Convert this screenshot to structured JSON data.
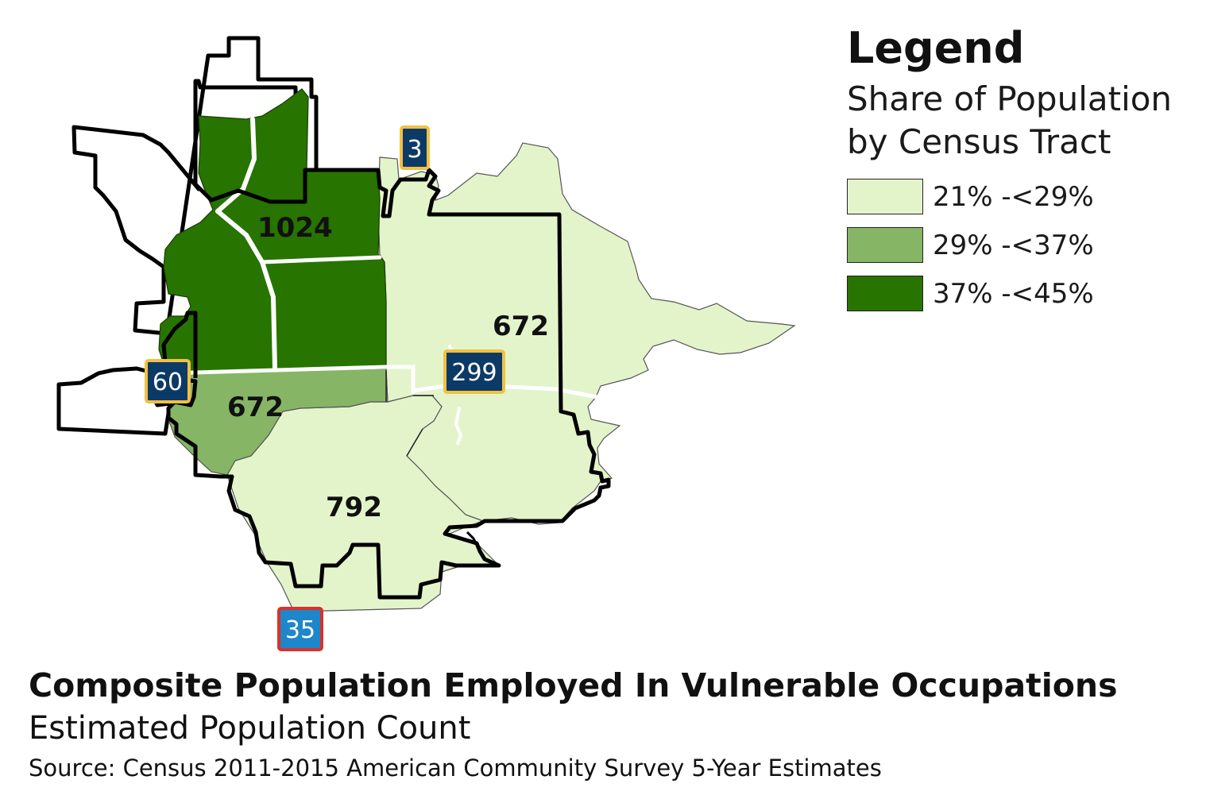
{
  "legend": {
    "title": "Legend",
    "subtitle_line1": "Share of Population",
    "subtitle_line2": "by Census Tract",
    "items": [
      {
        "label": "21% -<29%",
        "color": "#e3f4cb"
      },
      {
        "label": "29% -<37%",
        "color": "#86b566"
      },
      {
        "label": "37% -<45%",
        "color": "#277400"
      }
    ]
  },
  "tracts": [
    {
      "id": "north",
      "label": "1024",
      "class": "37% -<45%"
    },
    {
      "id": "west-center",
      "label": "672",
      "class": "29% -<37%"
    },
    {
      "id": "east",
      "label": "672",
      "class": "21% -<29%"
    },
    {
      "id": "south",
      "label": "792",
      "class": "21% -<29%"
    }
  ],
  "highways": [
    {
      "id": "hwy-3",
      "label": "3",
      "style": "state"
    },
    {
      "id": "hwy-60",
      "label": "60",
      "style": "state"
    },
    {
      "id": "hwy-299",
      "label": "299",
      "style": "state"
    },
    {
      "id": "hwy-35",
      "label": "35",
      "style": "interstate"
    }
  ],
  "colors": {
    "state_shield_fill": "#0c3a66",
    "state_shield_border": "#f2c043",
    "interstate_fill": "#1e86c9",
    "interstate_border": "#d8322a",
    "boundary": "#000000",
    "road": "#ffffff"
  },
  "caption": {
    "title": "Composite Population Employed In Vulnerable Occupations",
    "subtitle": "Estimated Population Count",
    "source": "Source: Census 2011-2015 American Community Survey 5-Year Estimates"
  }
}
